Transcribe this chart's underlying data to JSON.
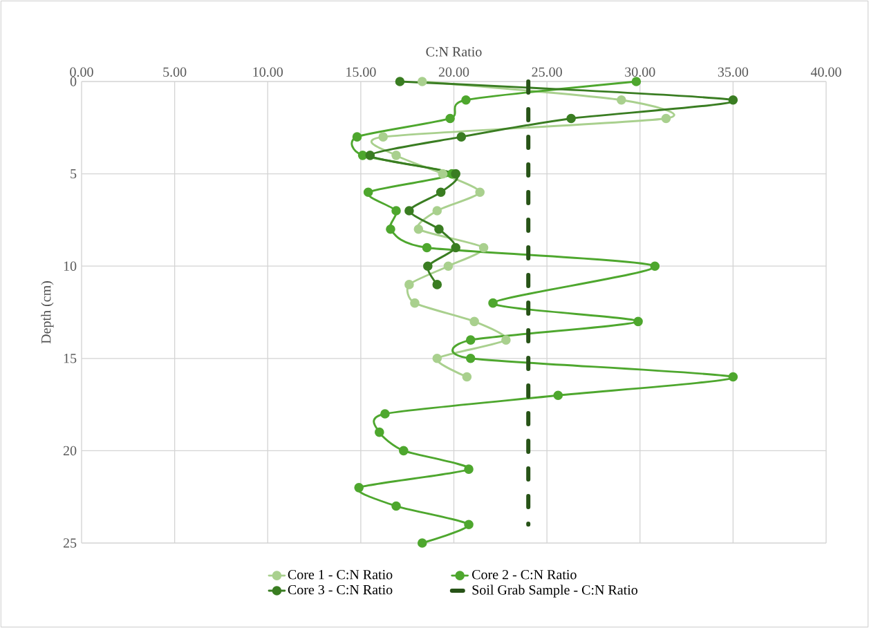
{
  "chart_data": {
    "type": "line",
    "xlabel": "C:N Ratio",
    "ylabel": "Depth (cm)",
    "xlim": [
      0,
      40
    ],
    "xticks": [
      {
        "value": 0,
        "label": "0.00"
      },
      {
        "value": 5,
        "label": "5.00"
      },
      {
        "value": 10,
        "label": "10.00"
      },
      {
        "value": 15,
        "label": "15.00"
      },
      {
        "value": 20,
        "label": "20.00"
      },
      {
        "value": 25,
        "label": "25.00"
      },
      {
        "value": 30,
        "label": "30.00"
      },
      {
        "value": 35,
        "label": "35.00"
      },
      {
        "value": 40,
        "label": "40.00"
      }
    ],
    "ylim": [
      25,
      0
    ],
    "yticks": [
      0,
      5,
      10,
      15,
      20,
      25
    ],
    "grid": true,
    "legend": "bottom",
    "marker": "circle",
    "series": [
      {
        "name": "Core 1 - C:N Ratio",
        "color": "#a9d08e",
        "x": [
          18.3,
          29.0,
          31.4,
          16.2,
          16.9,
          19.4,
          21.4,
          19.1,
          18.1,
          21.6,
          19.7,
          17.6,
          17.9,
          21.1,
          22.8,
          19.1,
          20.7
        ],
        "values": [
          0,
          1,
          2,
          3,
          4,
          5,
          6,
          7,
          8,
          9,
          10,
          11,
          12,
          13,
          14,
          15,
          16
        ]
      },
      {
        "name": "Core 2 - C:N Ratio",
        "color": "#4ea72e",
        "x": [
          29.8,
          20.65,
          19.8,
          14.8,
          15.1,
          19.9,
          15.4,
          16.9,
          16.6,
          18.55,
          30.8,
          null,
          22.1,
          29.9,
          20.9,
          20.9,
          35.0,
          25.6,
          16.3,
          16.0,
          17.3,
          20.8,
          14.9,
          16.9,
          20.8,
          18.3
        ],
        "values": [
          0,
          1,
          2,
          3,
          4,
          5,
          6,
          7,
          8,
          9,
          10,
          null,
          12,
          13,
          14,
          15,
          16,
          17,
          18,
          19,
          20,
          21,
          22,
          23,
          24,
          25
        ]
      },
      {
        "name": "Core 3 - C:N Ratio",
        "color": "#3a7d22",
        "x": [
          17.1,
          35.0,
          26.3,
          20.4,
          15.5,
          20.1,
          19.3,
          17.6,
          19.2,
          20.1,
          18.6,
          19.1
        ],
        "values": [
          0,
          1,
          2,
          3,
          4,
          5,
          6,
          7,
          8,
          9,
          10,
          11
        ]
      },
      {
        "name": "Soil Grab Sample - C:N Ratio",
        "color": "#275317",
        "x": [
          24.0,
          24.0
        ],
        "values": [
          0,
          24
        ],
        "marker": "none",
        "line_style": "dashed"
      }
    ]
  }
}
